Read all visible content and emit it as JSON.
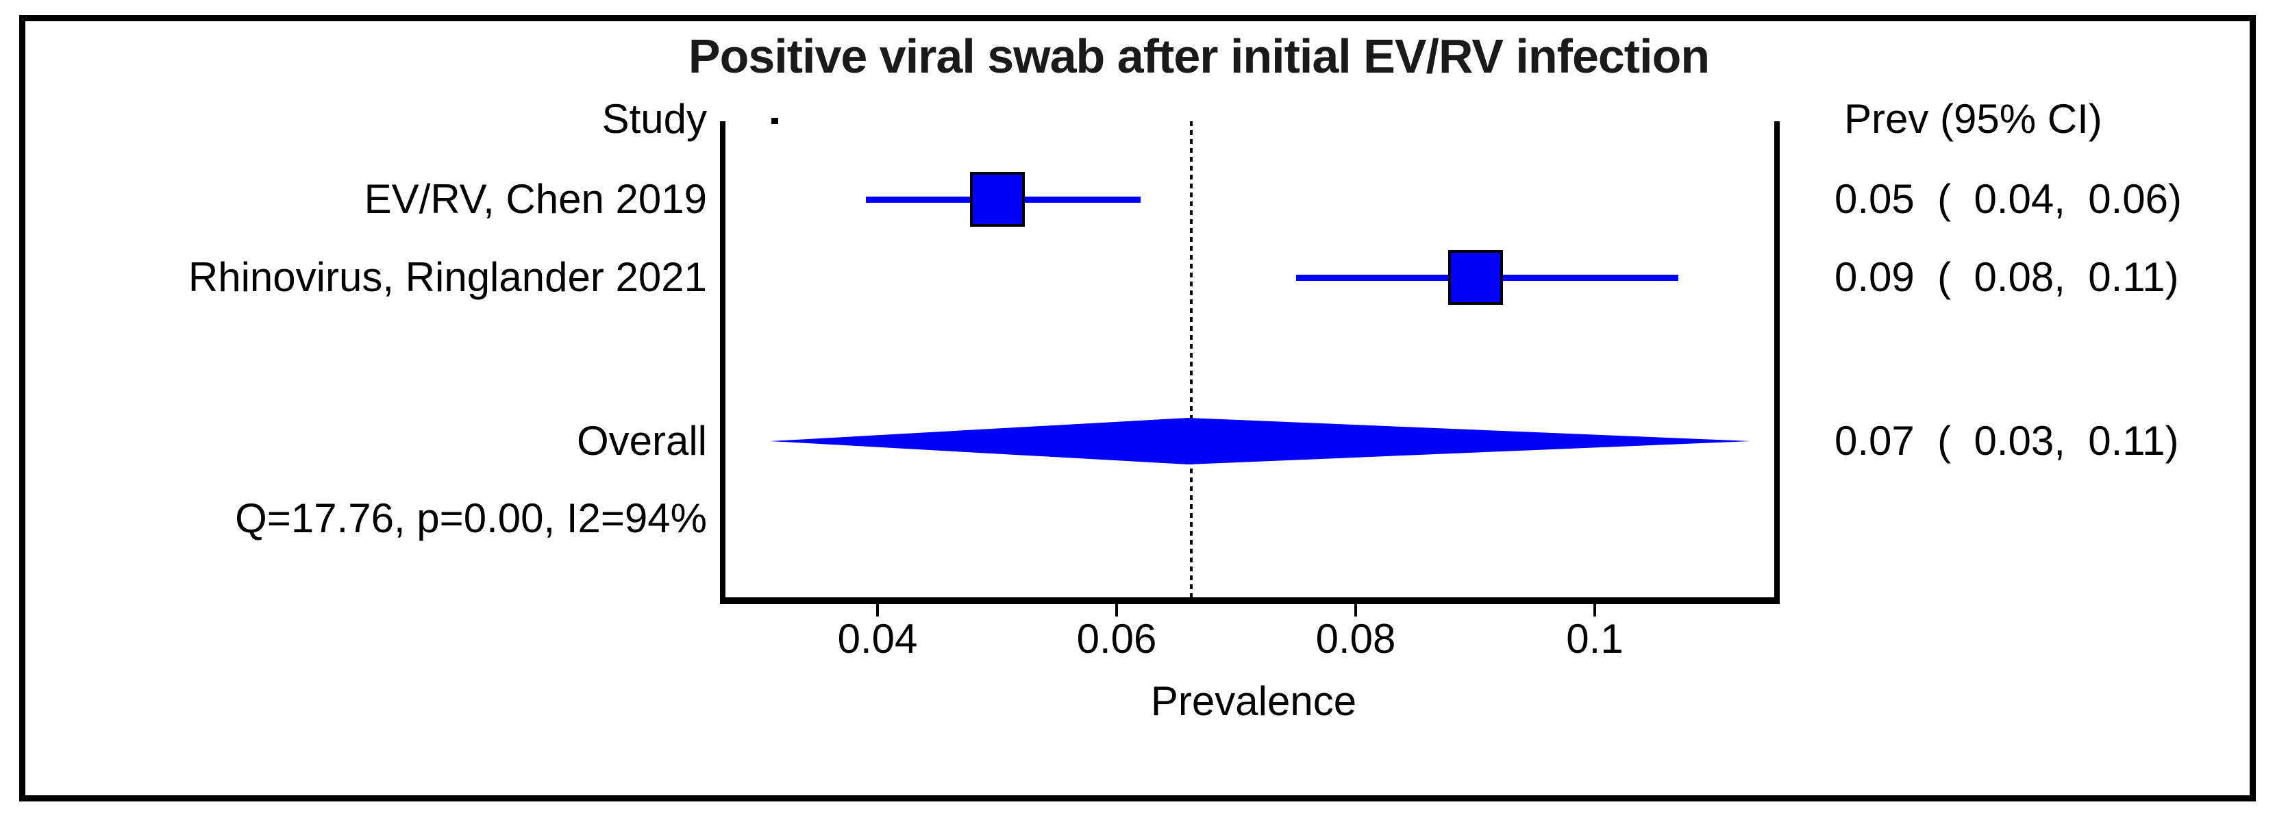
{
  "title": "Positive viral swab after initial EV/RV infection",
  "columns": {
    "study_header": "Study",
    "prev_header": "Prev (95% CI)"
  },
  "chart_data": {
    "type": "forest",
    "title": "Positive viral swab after initial EV/RV infection",
    "xlabel": "Prevalence",
    "xlim": [
      0.0275,
      0.115
    ],
    "x_ticks": [
      0.04,
      0.06,
      0.08,
      0.1
    ],
    "x_tick_labels": [
      "0.04",
      "0.06",
      "0.08",
      "0.1"
    ],
    "reference_line_x": 0.066,
    "grid": false,
    "studies": [
      {
        "label": "EV/RV, Chen 2019",
        "est": 0.05,
        "ci_lo_drawn": 0.039,
        "ci_hi_drawn": 0.062,
        "value_text": "0.05  (  0.04,  0.06)"
      },
      {
        "label": "Rhinovirus, Ringlander 2021",
        "est": 0.09,
        "ci_lo_drawn": 0.075,
        "ci_hi_drawn": 0.107,
        "value_text": "0.09  (  0.08,  0.11)"
      }
    ],
    "overall": {
      "label": "Overall",
      "est": 0.066,
      "ci_lo_drawn": 0.031,
      "ci_hi_drawn": 0.113,
      "value_text": "0.07  (  0.03,  0.11)"
    },
    "heterogeneity": "Q=17.76, p=0.00, I2=94%",
    "marker_color": "#0101F7",
    "axis_color": "#000000",
    "text_color": "#000000"
  }
}
